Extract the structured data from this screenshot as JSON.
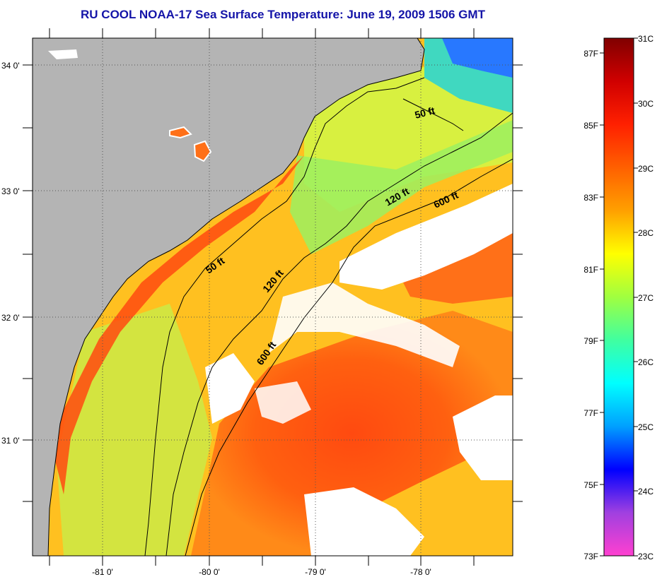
{
  "title": "RU COOL  NOAA-17  Sea Surface Temperature:  June 19, 2009 1506 GMT",
  "map": {
    "lat_ticks": [
      "34 0'",
      "33 0'",
      "32 0'",
      "31 0'"
    ],
    "lon_ticks": [
      "-81 0'",
      "-80 0'",
      "-79 0'",
      "-78 0'"
    ],
    "contour_labels": [
      "50 ft",
      "120 ft",
      "600 ft",
      "50 ft",
      "120 ft",
      "600 ft"
    ],
    "colors": {
      "land": "#b4b4b4",
      "cloud": "#ffffff",
      "coastline": "#000000",
      "contour": "#000000",
      "grid": "#555555"
    }
  },
  "colorbar": {
    "celsius_labels": [
      "31C",
      "30C",
      "29C",
      "28C",
      "27C",
      "26C",
      "25C",
      "24C",
      "23C"
    ],
    "fahrenheit_labels": [
      "87F",
      "85F",
      "83F",
      "81F",
      "79F",
      "77F",
      "75F",
      "73F"
    ],
    "gradient": [
      "#ff40d0",
      "#a040e0",
      "#0000ff",
      "#00a0ff",
      "#00ffff",
      "#40ffa0",
      "#a0ff40",
      "#ffff00",
      "#ffa000",
      "#ff6000",
      "#ff2000",
      "#d00000",
      "#800000"
    ]
  }
}
